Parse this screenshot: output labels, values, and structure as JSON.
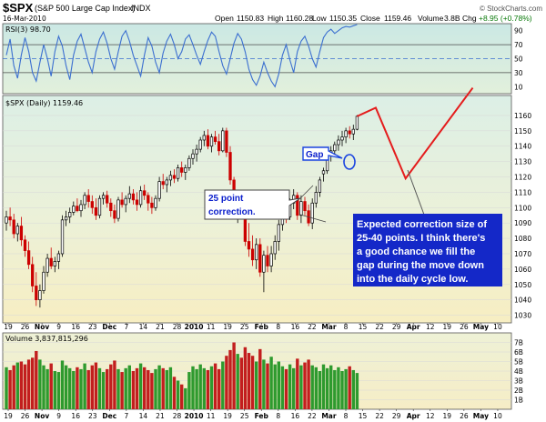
{
  "header": {
    "symbol": "$SPX",
    "name": "(S&P 500 Large Cap Index)",
    "exchange": "INDX",
    "date": "16-Mar-2010",
    "open_label": "Open",
    "open": "1150.83",
    "high_label": "High",
    "high": "1160.28",
    "low_label": "Low",
    "low": "1150.35",
    "close_label": "Close",
    "close": "1159.46",
    "volume_label": "Volume",
    "volume": "3.8B",
    "chg_label": "Chg",
    "chg": "+8.95 (+0.78%)",
    "credit": "© StockCharts.com"
  },
  "colors": {
    "up": "#000000",
    "down": "#cc0000",
    "rsi_line": "#3b6fd0",
    "projection": "#e41c1c",
    "annotation_text": "#0a1ecc",
    "callout_fill": "#1428c8",
    "rsi_bg": "#c8e6e0",
    "price_bg_top": "#dbeee4",
    "price_bg_bottom": "#f6eec2",
    "volume_bg": "#f3eec8"
  },
  "annotations": {
    "gap": "Gap",
    "correction_line1": "25 point",
    "correction_line2": "correction.",
    "expected_line1": "Expected correction size of",
    "expected_line2": "25-40 points. I think there's",
    "expected_line3": "a good chance we fill the",
    "expected_line4": "gap during the move down",
    "expected_line5": "into the daily cycle low."
  },
  "chart_data": [
    {
      "type": "line",
      "panel": "rsi",
      "title": "RSI(3) 98.70",
      "ylim": [
        0,
        100
      ],
      "y_ticks": [
        10,
        30,
        50,
        70,
        90
      ],
      "reference_lines": [
        30,
        50,
        70
      ],
      "series": [
        {
          "values": [
            55,
            78,
            40,
            22,
            55,
            80,
            60,
            30,
            18,
            45,
            70,
            50,
            25,
            60,
            82,
            68,
            40,
            20,
            55,
            75,
            85,
            65,
            45,
            30,
            60,
            78,
            88,
            72,
            50,
            35,
            60,
            82,
            90,
            75,
            55,
            40,
            25,
            55,
            80,
            68,
            45,
            30,
            58,
            75,
            85,
            70,
            50,
            60,
            78,
            84,
            70,
            55,
            42,
            60,
            76,
            88,
            82,
            60,
            40,
            28,
            50,
            72,
            86,
            78,
            60,
            35,
            20,
            12,
            25,
            45,
            30,
            18,
            10,
            28,
            55,
            70,
            48,
            30,
            60,
            75,
            82,
            68,
            50,
            38,
            60,
            80,
            88,
            92,
            86,
            90,
            94,
            96,
            95,
            97,
            98.7
          ]
        }
      ]
    },
    {
      "type": "candlestick",
      "panel": "price",
      "title": "$SPX (Daily) 1159.46",
      "ylim": [
        1025,
        1173
      ],
      "y_ticks": [
        1030,
        1040,
        1050,
        1060,
        1070,
        1080,
        1090,
        1100,
        1110,
        1120,
        1130,
        1140,
        1150,
        1160
      ],
      "x_ticks": [
        "19",
        "26",
        "Nov",
        "9",
        "16",
        "23",
        "Dec",
        "7",
        "14",
        "21",
        "28",
        "2010",
        "11",
        "19",
        "25",
        "Feb",
        "8",
        "16",
        "22",
        "Mar",
        "8",
        "15",
        "22",
        "29",
        "Apr",
        "12",
        "19",
        "26",
        "May",
        "10"
      ],
      "bold_x_ticks": [
        "Nov",
        "Dec",
        "2010",
        "Feb",
        "Mar",
        "Apr",
        "May"
      ],
      "bars": [
        [
          1090,
          1098,
          1085,
          1094
        ],
        [
          1094,
          1100,
          1088,
          1092
        ],
        [
          1092,
          1096,
          1080,
          1083
        ],
        [
          1083,
          1090,
          1078,
          1088
        ],
        [
          1088,
          1094,
          1075,
          1079
        ],
        [
          1079,
          1082,
          1068,
          1072
        ],
        [
          1072,
          1078,
          1060,
          1063
        ],
        [
          1063,
          1068,
          1045,
          1049
        ],
        [
          1049,
          1058,
          1036,
          1040
        ],
        [
          1040,
          1050,
          1035,
          1046
        ],
        [
          1046,
          1062,
          1044,
          1058
        ],
        [
          1058,
          1070,
          1055,
          1067
        ],
        [
          1067,
          1074,
          1060,
          1062
        ],
        [
          1062,
          1068,
          1058,
          1065
        ],
        [
          1065,
          1072,
          1060,
          1070
        ],
        [
          1070,
          1095,
          1068,
          1092
        ],
        [
          1092,
          1098,
          1088,
          1094
        ],
        [
          1094,
          1100,
          1090,
          1097
        ],
        [
          1097,
          1104,
          1095,
          1101
        ],
        [
          1101,
          1106,
          1097,
          1098
        ],
        [
          1098,
          1105,
          1094,
          1102
        ],
        [
          1102,
          1110,
          1099,
          1108
        ],
        [
          1108,
          1112,
          1100,
          1104
        ],
        [
          1104,
          1108,
          1096,
          1100
        ],
        [
          1100,
          1106,
          1092,
          1095
        ],
        [
          1095,
          1108,
          1093,
          1106
        ],
        [
          1106,
          1110,
          1102,
          1108
        ],
        [
          1108,
          1111,
          1100,
          1103
        ],
        [
          1103,
          1106,
          1094,
          1098
        ],
        [
          1098,
          1102,
          1090,
          1093
        ],
        [
          1093,
          1107,
          1091,
          1105
        ],
        [
          1105,
          1110,
          1100,
          1102
        ],
        [
          1102,
          1108,
          1097,
          1106
        ],
        [
          1106,
          1114,
          1103,
          1109
        ],
        [
          1109,
          1112,
          1102,
          1105
        ],
        [
          1105,
          1110,
          1098,
          1102
        ],
        [
          1102,
          1114,
          1100,
          1111
        ],
        [
          1111,
          1115,
          1105,
          1108
        ],
        [
          1108,
          1110,
          1098,
          1103
        ],
        [
          1103,
          1107,
          1096,
          1100
        ],
        [
          1100,
          1108,
          1098,
          1106
        ],
        [
          1106,
          1120,
          1104,
          1117
        ],
        [
          1117,
          1122,
          1112,
          1115
        ],
        [
          1115,
          1120,
          1110,
          1118
        ],
        [
          1118,
          1124,
          1114,
          1121
        ],
        [
          1121,
          1125,
          1116,
          1119
        ],
        [
          1119,
          1128,
          1117,
          1126
        ],
        [
          1126,
          1130,
          1120,
          1123
        ],
        [
          1123,
          1128,
          1118,
          1126
        ],
        [
          1126,
          1134,
          1124,
          1132
        ],
        [
          1132,
          1138,
          1128,
          1135
        ],
        [
          1135,
          1141,
          1130,
          1138
        ],
        [
          1138,
          1146,
          1136,
          1144
        ],
        [
          1144,
          1150,
          1140,
          1147
        ],
        [
          1147,
          1151,
          1138,
          1140
        ],
        [
          1140,
          1148,
          1136,
          1146
        ],
        [
          1146,
          1150,
          1141,
          1143
        ],
        [
          1143,
          1148,
          1134,
          1137
        ],
        [
          1137,
          1152,
          1136,
          1150
        ],
        [
          1150,
          1152,
          1133,
          1136
        ],
        [
          1136,
          1140,
          1115,
          1118
        ],
        [
          1118,
          1120,
          1095,
          1098
        ],
        [
          1098,
          1110,
          1090,
          1106
        ],
        [
          1106,
          1110,
          1093,
          1096
        ],
        [
          1096,
          1100,
          1075,
          1078
        ],
        [
          1078,
          1090,
          1068,
          1073
        ],
        [
          1073,
          1082,
          1062,
          1066
        ],
        [
          1066,
          1080,
          1060,
          1076
        ],
        [
          1076,
          1080,
          1055,
          1058
        ],
        [
          1058,
          1072,
          1045,
          1069
        ],
        [
          1069,
          1075,
          1058,
          1062
        ],
        [
          1062,
          1075,
          1058,
          1070
        ],
        [
          1070,
          1082,
          1066,
          1078
        ],
        [
          1078,
          1092,
          1072,
          1089
        ],
        [
          1089,
          1098,
          1085,
          1096
        ],
        [
          1096,
          1102,
          1090,
          1094
        ],
        [
          1094,
          1106,
          1092,
          1103
        ],
        [
          1103,
          1112,
          1099,
          1108
        ],
        [
          1108,
          1110,
          1092,
          1095
        ],
        [
          1095,
          1108,
          1090,
          1104
        ],
        [
          1104,
          1107,
          1095,
          1098
        ],
        [
          1098,
          1102,
          1088,
          1090
        ],
        [
          1090,
          1106,
          1086,
          1103
        ],
        [
          1103,
          1114,
          1100,
          1110
        ],
        [
          1110,
          1120,
          1107,
          1118
        ],
        [
          1122,
          1126,
          1117,
          1124
        ],
        [
          1124,
          1136,
          1122,
          1134
        ],
        [
          1134,
          1140,
          1130,
          1137
        ],
        [
          1137,
          1143,
          1133,
          1141
        ],
        [
          1141,
          1147,
          1137,
          1144
        ],
        [
          1144,
          1150,
          1140,
          1146
        ],
        [
          1146,
          1152,
          1142,
          1150
        ],
        [
          1150,
          1153,
          1145,
          1148
        ],
        [
          1148,
          1154,
          1144,
          1151
        ],
        [
          1151,
          1160.28,
          1150.35,
          1159.46
        ]
      ],
      "projection": [
        1165,
        1119,
        1178
      ]
    },
    {
      "type": "bar",
      "panel": "volume",
      "title": "Volume 3,837,815,296",
      "ylim": [
        0,
        8
      ],
      "unit": "B",
      "y_ticks": [
        "1B",
        "2B",
        "3B",
        "4B",
        "5B",
        "6B",
        "7B"
      ],
      "values": [
        4.4,
        4.1,
        4.6,
        4.9,
        5.0,
        4.7,
        5.2,
        5.4,
        6.1,
        5.2,
        4.6,
        4.2,
        4.8,
        4.0,
        3.9,
        5.1,
        4.6,
        4.3,
        4.0,
        4.4,
        4.2,
        4.8,
        4.1,
        4.6,
        4.9,
        4.3,
        3.9,
        4.2,
        4.7,
        5.1,
        4.2,
        3.9,
        4.3,
        4.6,
        4.0,
        4.3,
        4.8,
        4.4,
        4.1,
        3.8,
        4.2,
        4.6,
        4.3,
        4.1,
        4.4,
        3.4,
        3.0,
        2.6,
        2.2,
        3.9,
        4.5,
        4.2,
        4.7,
        4.3,
        4.1,
        4.5,
        4.8,
        4.2,
        5.0,
        5.6,
        6.2,
        7.0,
        5.8,
        5.4,
        6.5,
        5.9,
        5.6,
        5.0,
        6.3,
        5.2,
        4.8,
        5.5,
        4.7,
        5.0,
        4.5,
        4.2,
        4.7,
        4.3,
        5.3,
        4.6,
        4.9,
        5.2,
        4.6,
        4.4,
        4.0,
        4.7,
        4.3,
        4.6,
        4.1,
        4.4,
        4.0,
        4.2,
        4.5,
        4.1,
        3.8
      ]
    }
  ]
}
